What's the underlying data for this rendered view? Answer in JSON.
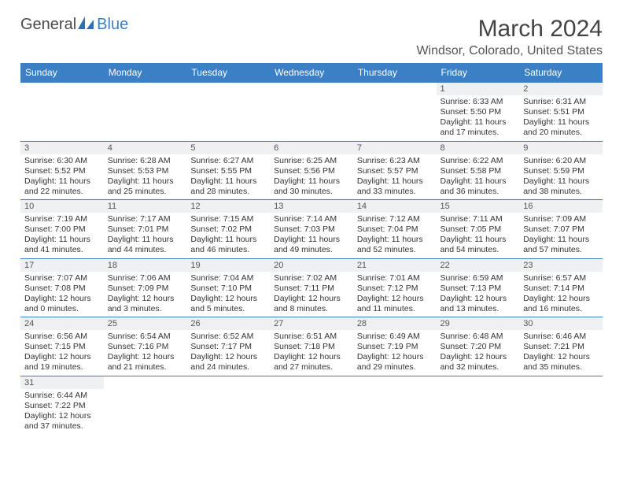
{
  "logo": {
    "textA": "General",
    "textB": "Blue"
  },
  "title": "March 2024",
  "location": "Windsor, Colorado, United States",
  "colors": {
    "header_bg": "#3b7fc4",
    "daynum_bg": "#eef0f1",
    "border": "#3b7fc4"
  },
  "weekdays": [
    "Sunday",
    "Monday",
    "Tuesday",
    "Wednesday",
    "Thursday",
    "Friday",
    "Saturday"
  ],
  "weeks": [
    [
      {
        "n": "",
        "sr": "",
        "ss": "",
        "dl": ""
      },
      {
        "n": "",
        "sr": "",
        "ss": "",
        "dl": ""
      },
      {
        "n": "",
        "sr": "",
        "ss": "",
        "dl": ""
      },
      {
        "n": "",
        "sr": "",
        "ss": "",
        "dl": ""
      },
      {
        "n": "",
        "sr": "",
        "ss": "",
        "dl": ""
      },
      {
        "n": "1",
        "sr": "Sunrise: 6:33 AM",
        "ss": "Sunset: 5:50 PM",
        "dl": "Daylight: 11 hours and 17 minutes."
      },
      {
        "n": "2",
        "sr": "Sunrise: 6:31 AM",
        "ss": "Sunset: 5:51 PM",
        "dl": "Daylight: 11 hours and 20 minutes."
      }
    ],
    [
      {
        "n": "3",
        "sr": "Sunrise: 6:30 AM",
        "ss": "Sunset: 5:52 PM",
        "dl": "Daylight: 11 hours and 22 minutes."
      },
      {
        "n": "4",
        "sr": "Sunrise: 6:28 AM",
        "ss": "Sunset: 5:53 PM",
        "dl": "Daylight: 11 hours and 25 minutes."
      },
      {
        "n": "5",
        "sr": "Sunrise: 6:27 AM",
        "ss": "Sunset: 5:55 PM",
        "dl": "Daylight: 11 hours and 28 minutes."
      },
      {
        "n": "6",
        "sr": "Sunrise: 6:25 AM",
        "ss": "Sunset: 5:56 PM",
        "dl": "Daylight: 11 hours and 30 minutes."
      },
      {
        "n": "7",
        "sr": "Sunrise: 6:23 AM",
        "ss": "Sunset: 5:57 PM",
        "dl": "Daylight: 11 hours and 33 minutes."
      },
      {
        "n": "8",
        "sr": "Sunrise: 6:22 AM",
        "ss": "Sunset: 5:58 PM",
        "dl": "Daylight: 11 hours and 36 minutes."
      },
      {
        "n": "9",
        "sr": "Sunrise: 6:20 AM",
        "ss": "Sunset: 5:59 PM",
        "dl": "Daylight: 11 hours and 38 minutes."
      }
    ],
    [
      {
        "n": "10",
        "sr": "Sunrise: 7:19 AM",
        "ss": "Sunset: 7:00 PM",
        "dl": "Daylight: 11 hours and 41 minutes."
      },
      {
        "n": "11",
        "sr": "Sunrise: 7:17 AM",
        "ss": "Sunset: 7:01 PM",
        "dl": "Daylight: 11 hours and 44 minutes."
      },
      {
        "n": "12",
        "sr": "Sunrise: 7:15 AM",
        "ss": "Sunset: 7:02 PM",
        "dl": "Daylight: 11 hours and 46 minutes."
      },
      {
        "n": "13",
        "sr": "Sunrise: 7:14 AM",
        "ss": "Sunset: 7:03 PM",
        "dl": "Daylight: 11 hours and 49 minutes."
      },
      {
        "n": "14",
        "sr": "Sunrise: 7:12 AM",
        "ss": "Sunset: 7:04 PM",
        "dl": "Daylight: 11 hours and 52 minutes."
      },
      {
        "n": "15",
        "sr": "Sunrise: 7:11 AM",
        "ss": "Sunset: 7:05 PM",
        "dl": "Daylight: 11 hours and 54 minutes."
      },
      {
        "n": "16",
        "sr": "Sunrise: 7:09 AM",
        "ss": "Sunset: 7:07 PM",
        "dl": "Daylight: 11 hours and 57 minutes."
      }
    ],
    [
      {
        "n": "17",
        "sr": "Sunrise: 7:07 AM",
        "ss": "Sunset: 7:08 PM",
        "dl": "Daylight: 12 hours and 0 minutes."
      },
      {
        "n": "18",
        "sr": "Sunrise: 7:06 AM",
        "ss": "Sunset: 7:09 PM",
        "dl": "Daylight: 12 hours and 3 minutes."
      },
      {
        "n": "19",
        "sr": "Sunrise: 7:04 AM",
        "ss": "Sunset: 7:10 PM",
        "dl": "Daylight: 12 hours and 5 minutes."
      },
      {
        "n": "20",
        "sr": "Sunrise: 7:02 AM",
        "ss": "Sunset: 7:11 PM",
        "dl": "Daylight: 12 hours and 8 minutes."
      },
      {
        "n": "21",
        "sr": "Sunrise: 7:01 AM",
        "ss": "Sunset: 7:12 PM",
        "dl": "Daylight: 12 hours and 11 minutes."
      },
      {
        "n": "22",
        "sr": "Sunrise: 6:59 AM",
        "ss": "Sunset: 7:13 PM",
        "dl": "Daylight: 12 hours and 13 minutes."
      },
      {
        "n": "23",
        "sr": "Sunrise: 6:57 AM",
        "ss": "Sunset: 7:14 PM",
        "dl": "Daylight: 12 hours and 16 minutes."
      }
    ],
    [
      {
        "n": "24",
        "sr": "Sunrise: 6:56 AM",
        "ss": "Sunset: 7:15 PM",
        "dl": "Daylight: 12 hours and 19 minutes."
      },
      {
        "n": "25",
        "sr": "Sunrise: 6:54 AM",
        "ss": "Sunset: 7:16 PM",
        "dl": "Daylight: 12 hours and 21 minutes."
      },
      {
        "n": "26",
        "sr": "Sunrise: 6:52 AM",
        "ss": "Sunset: 7:17 PM",
        "dl": "Daylight: 12 hours and 24 minutes."
      },
      {
        "n": "27",
        "sr": "Sunrise: 6:51 AM",
        "ss": "Sunset: 7:18 PM",
        "dl": "Daylight: 12 hours and 27 minutes."
      },
      {
        "n": "28",
        "sr": "Sunrise: 6:49 AM",
        "ss": "Sunset: 7:19 PM",
        "dl": "Daylight: 12 hours and 29 minutes."
      },
      {
        "n": "29",
        "sr": "Sunrise: 6:48 AM",
        "ss": "Sunset: 7:20 PM",
        "dl": "Daylight: 12 hours and 32 minutes."
      },
      {
        "n": "30",
        "sr": "Sunrise: 6:46 AM",
        "ss": "Sunset: 7:21 PM",
        "dl": "Daylight: 12 hours and 35 minutes."
      }
    ],
    [
      {
        "n": "31",
        "sr": "Sunrise: 6:44 AM",
        "ss": "Sunset: 7:22 PM",
        "dl": "Daylight: 12 hours and 37 minutes."
      },
      {
        "n": "",
        "sr": "",
        "ss": "",
        "dl": ""
      },
      {
        "n": "",
        "sr": "",
        "ss": "",
        "dl": ""
      },
      {
        "n": "",
        "sr": "",
        "ss": "",
        "dl": ""
      },
      {
        "n": "",
        "sr": "",
        "ss": "",
        "dl": ""
      },
      {
        "n": "",
        "sr": "",
        "ss": "",
        "dl": ""
      },
      {
        "n": "",
        "sr": "",
        "ss": "",
        "dl": ""
      }
    ]
  ]
}
